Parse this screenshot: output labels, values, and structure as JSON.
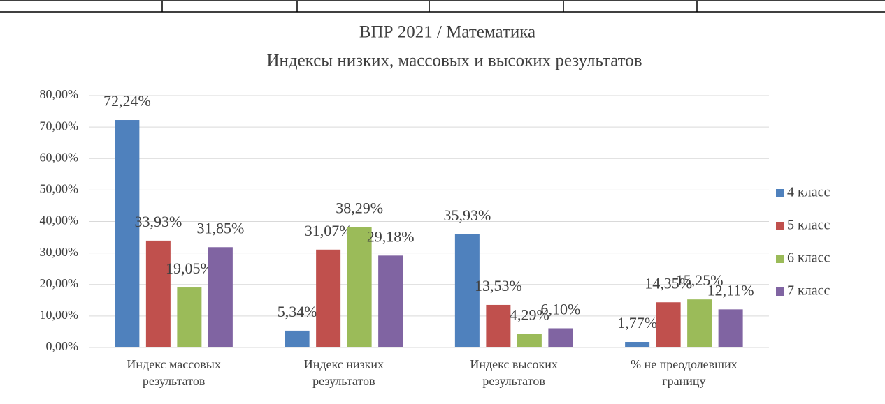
{
  "chart_data": {
    "type": "bar",
    "title": "ВПР 2021 / Математика",
    "subtitle": "Индексы низких, массовых и высоких результатов",
    "categories": [
      [
        "Индекс массовых",
        "результатов"
      ],
      [
        "Индекс низких",
        "результатов"
      ],
      [
        "Индекс высоких",
        "результатов"
      ],
      [
        "% не преодолевших",
        "границу"
      ]
    ],
    "series": [
      {
        "name": "4 класс",
        "color": "#4f81bd",
        "values": [
          72.24,
          5.34,
          35.93,
          1.77
        ],
        "value_labels": [
          "72,24%",
          "5,34%",
          "35,93%",
          "1,77%"
        ]
      },
      {
        "name": "5 класс",
        "color": "#c0504d",
        "values": [
          33.93,
          31.07,
          13.53,
          14.35
        ],
        "value_labels": [
          "33,93%",
          "31,07%",
          "13,53%",
          "14,35%"
        ]
      },
      {
        "name": "6 класс",
        "color": "#9bbb59",
        "values": [
          19.05,
          38.29,
          4.29,
          15.25
        ],
        "value_labels": [
          "19,05%",
          "38,29%",
          "4,29%",
          "15,25%"
        ]
      },
      {
        "name": "7 класс",
        "color": "#8064a2",
        "values": [
          31.85,
          29.18,
          6.1,
          12.11
        ],
        "value_labels": [
          "31,85%",
          "29,18%",
          "6,10%",
          "12,11%"
        ]
      }
    ],
    "ylim": [
      0,
      80
    ],
    "yticks": [
      {
        "value": 0,
        "label": "0,00%"
      },
      {
        "value": 10,
        "label": "10,00%"
      },
      {
        "value": 20,
        "label": "20,00%"
      },
      {
        "value": 30,
        "label": "30,00%"
      },
      {
        "value": 40,
        "label": "40,00%"
      },
      {
        "value": 50,
        "label": "50,00%"
      },
      {
        "value": 60,
        "label": "60,00%"
      },
      {
        "value": 70,
        "label": "70,00%"
      },
      {
        "value": 80,
        "label": "80,00%"
      }
    ],
    "grid": true,
    "legend": "right"
  }
}
